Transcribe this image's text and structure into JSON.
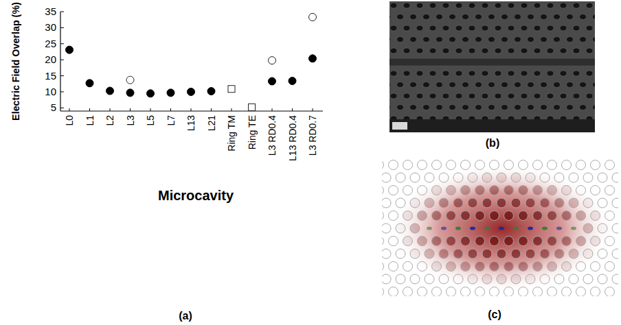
{
  "chart_data": {
    "type": "scatter",
    "x_label": "Microcavity",
    "y_label": "Electric Field Overlap (%)",
    "categories": [
      "L0",
      "L1",
      "L2",
      "L3",
      "L5",
      "L7",
      "L13",
      "L21",
      "Ring TM",
      "Ring TE",
      "L3  RD0.4",
      "L13  RD0.4",
      "L3  RD0.7"
    ],
    "series": [
      {
        "color": "#000000",
        "marker": "circle",
        "values": [
          23.1,
          12.7,
          10.3,
          9.7,
          9.5,
          9.7,
          10.0,
          10.2,
          null,
          null,
          13.3,
          13.4,
          20.4
        ]
      },
      {
        "color": "#222222",
        "marker": "open_circle",
        "values": [
          null,
          null,
          null,
          13.7,
          null,
          null,
          null,
          null,
          null,
          null,
          19.8,
          null,
          33.3
        ]
      },
      {
        "color": "#222222",
        "marker": "open_square",
        "values": [
          null,
          null,
          null,
          null,
          null,
          null,
          null,
          null,
          10.9,
          5.2,
          null,
          null,
          null
        ]
      }
    ],
    "ylim": [
      4,
      35
    ],
    "yticks": [
      5,
      10,
      15,
      20,
      25,
      30,
      35
    ],
    "grid": false
  },
  "panel_labels": [
    "(a)",
    "(b)",
    "(c)"
  ]
}
